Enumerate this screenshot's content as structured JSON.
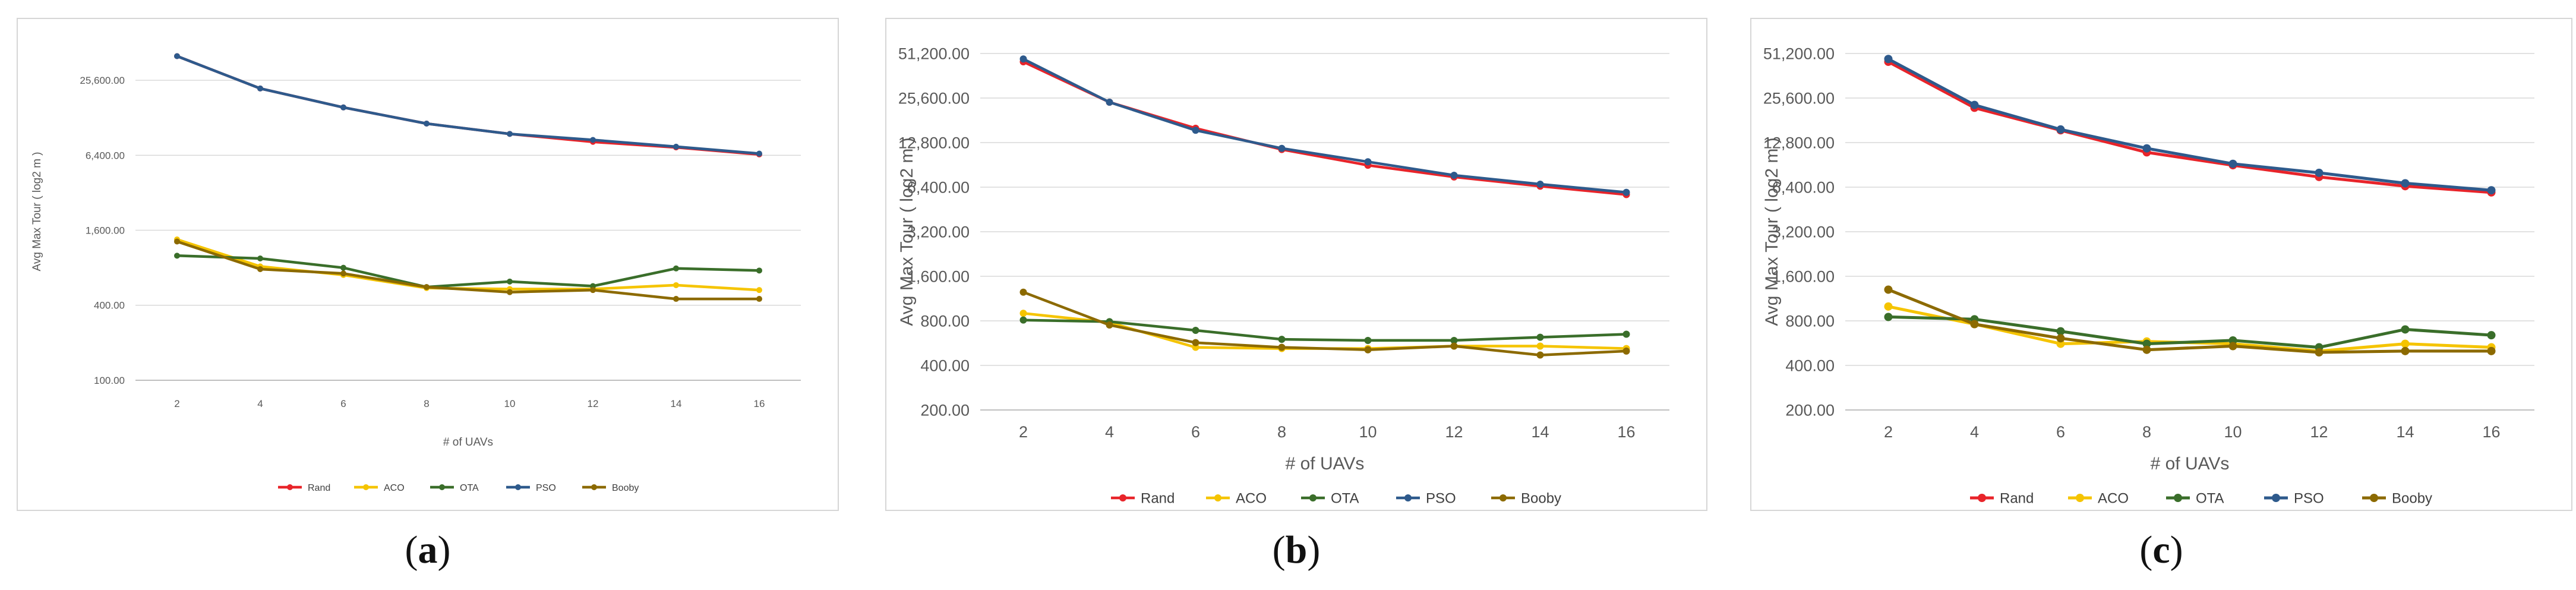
{
  "colors": {
    "Rand": "#e8242a",
    "ACO": "#f5c400",
    "OTA": "#3a6e2a",
    "PSO": "#2e5a8c",
    "Booby": "#8c6a00",
    "grid": "#d9d9d9",
    "text": "#595959"
  },
  "captions": [
    "a",
    "b",
    "c"
  ],
  "chart_data": [
    {
      "type": "line",
      "panel": "a",
      "title": "",
      "xlabel": "# of UAVs",
      "ylabel": "Avg Max Tour ( log2 m )",
      "yscale": "log2",
      "ylim": [
        100,
        51200
      ],
      "yticks": [
        100,
        400,
        1600,
        6400,
        25600
      ],
      "ytick_labels": [
        "100.00",
        "400.00",
        "1,600.00",
        "6,400.00",
        "25,600.00"
      ],
      "x": [
        2,
        4,
        6,
        8,
        10,
        12,
        14,
        16
      ],
      "xtick_labels": [
        "2",
        "4",
        "6",
        "8",
        "10",
        "12",
        "14",
        "16"
      ],
      "legend_position": "bottom",
      "series": [
        {
          "name": "Rand",
          "values": [
            40000,
            22000,
            15500,
            11500,
            9500,
            8200,
            7400,
            6500
          ]
        },
        {
          "name": "ACO",
          "values": [
            1350,
            820,
            700,
            550,
            540,
            540,
            580,
            530
          ]
        },
        {
          "name": "OTA",
          "values": [
            1000,
            950,
            800,
            560,
            620,
            570,
            790,
            760
          ]
        },
        {
          "name": "PSO",
          "values": [
            40000,
            22000,
            15500,
            11500,
            9500,
            8500,
            7500,
            6600
          ]
        },
        {
          "name": "Booby",
          "values": [
            1300,
            780,
            720,
            560,
            510,
            530,
            450,
            450
          ]
        }
      ]
    },
    {
      "type": "line",
      "panel": "b",
      "title": "",
      "xlabel": "# of UAVs",
      "ylabel": "Avg Max Tour ( log2 m )",
      "yscale": "log2",
      "ylim": [
        200,
        51200
      ],
      "yticks": [
        200,
        400,
        800,
        1600,
        3200,
        6400,
        12800,
        25600,
        51200
      ],
      "ytick_labels": [
        "200.00",
        "400.00",
        "800.00",
        "1,600.00",
        "3,200.00",
        "6,400.00",
        "12,800.00",
        "25,600.00",
        "51,200.00"
      ],
      "x": [
        2,
        4,
        6,
        8,
        10,
        12,
        14,
        16
      ],
      "xtick_labels": [
        "2",
        "4",
        "6",
        "8",
        "10",
        "12",
        "14",
        "16"
      ],
      "legend_position": "bottom",
      "series": [
        {
          "name": "Rand",
          "values": [
            45000,
            24000,
            16000,
            11500,
            9000,
            7500,
            6500,
            5700
          ]
        },
        {
          "name": "ACO",
          "values": [
            900,
            780,
            530,
            520,
            520,
            540,
            540,
            520
          ]
        },
        {
          "name": "OTA",
          "values": [
            810,
            790,
            690,
            600,
            590,
            590,
            620,
            650
          ]
        },
        {
          "name": "PSO",
          "values": [
            47000,
            24000,
            15500,
            11700,
            9500,
            7700,
            6700,
            5900
          ]
        },
        {
          "name": "Booby",
          "values": [
            1250,
            750,
            570,
            530,
            510,
            540,
            470,
            500
          ]
        }
      ]
    },
    {
      "type": "line",
      "panel": "c",
      "title": "",
      "xlabel": "# of UAVs",
      "ylabel": "Avg Max Tour ( log2 m )",
      "yscale": "log2",
      "ylim": [
        200,
        51200
      ],
      "yticks": [
        200,
        400,
        800,
        1600,
        3200,
        6400,
        12800,
        25600,
        51200
      ],
      "ytick_labels": [
        "200.00",
        "400.00",
        "800.00",
        "1,600.00",
        "3,200.00",
        "6,400.00",
        "12,800.00",
        "25,600.00",
        "51,200.00"
      ],
      "x": [
        2,
        4,
        6,
        8,
        10,
        12,
        14,
        16
      ],
      "xtick_labels": [
        "2",
        "4",
        "6",
        "8",
        "10",
        "12",
        "14",
        "16"
      ],
      "legend_position": "bottom",
      "series": [
        {
          "name": "Rand",
          "values": [
            45000,
            22000,
            15500,
            11000,
            9000,
            7500,
            6500,
            5900
          ]
        },
        {
          "name": "ACO",
          "values": [
            1000,
            760,
            560,
            580,
            560,
            500,
            560,
            530
          ]
        },
        {
          "name": "OTA",
          "values": [
            850,
            820,
            680,
            560,
            590,
            530,
            700,
            640
          ]
        },
        {
          "name": "PSO",
          "values": [
            47000,
            23000,
            15700,
            11700,
            9200,
            8000,
            6800,
            6100
          ]
        },
        {
          "name": "Booby",
          "values": [
            1300,
            760,
            610,
            510,
            540,
            490,
            500,
            500
          ]
        }
      ]
    }
  ]
}
